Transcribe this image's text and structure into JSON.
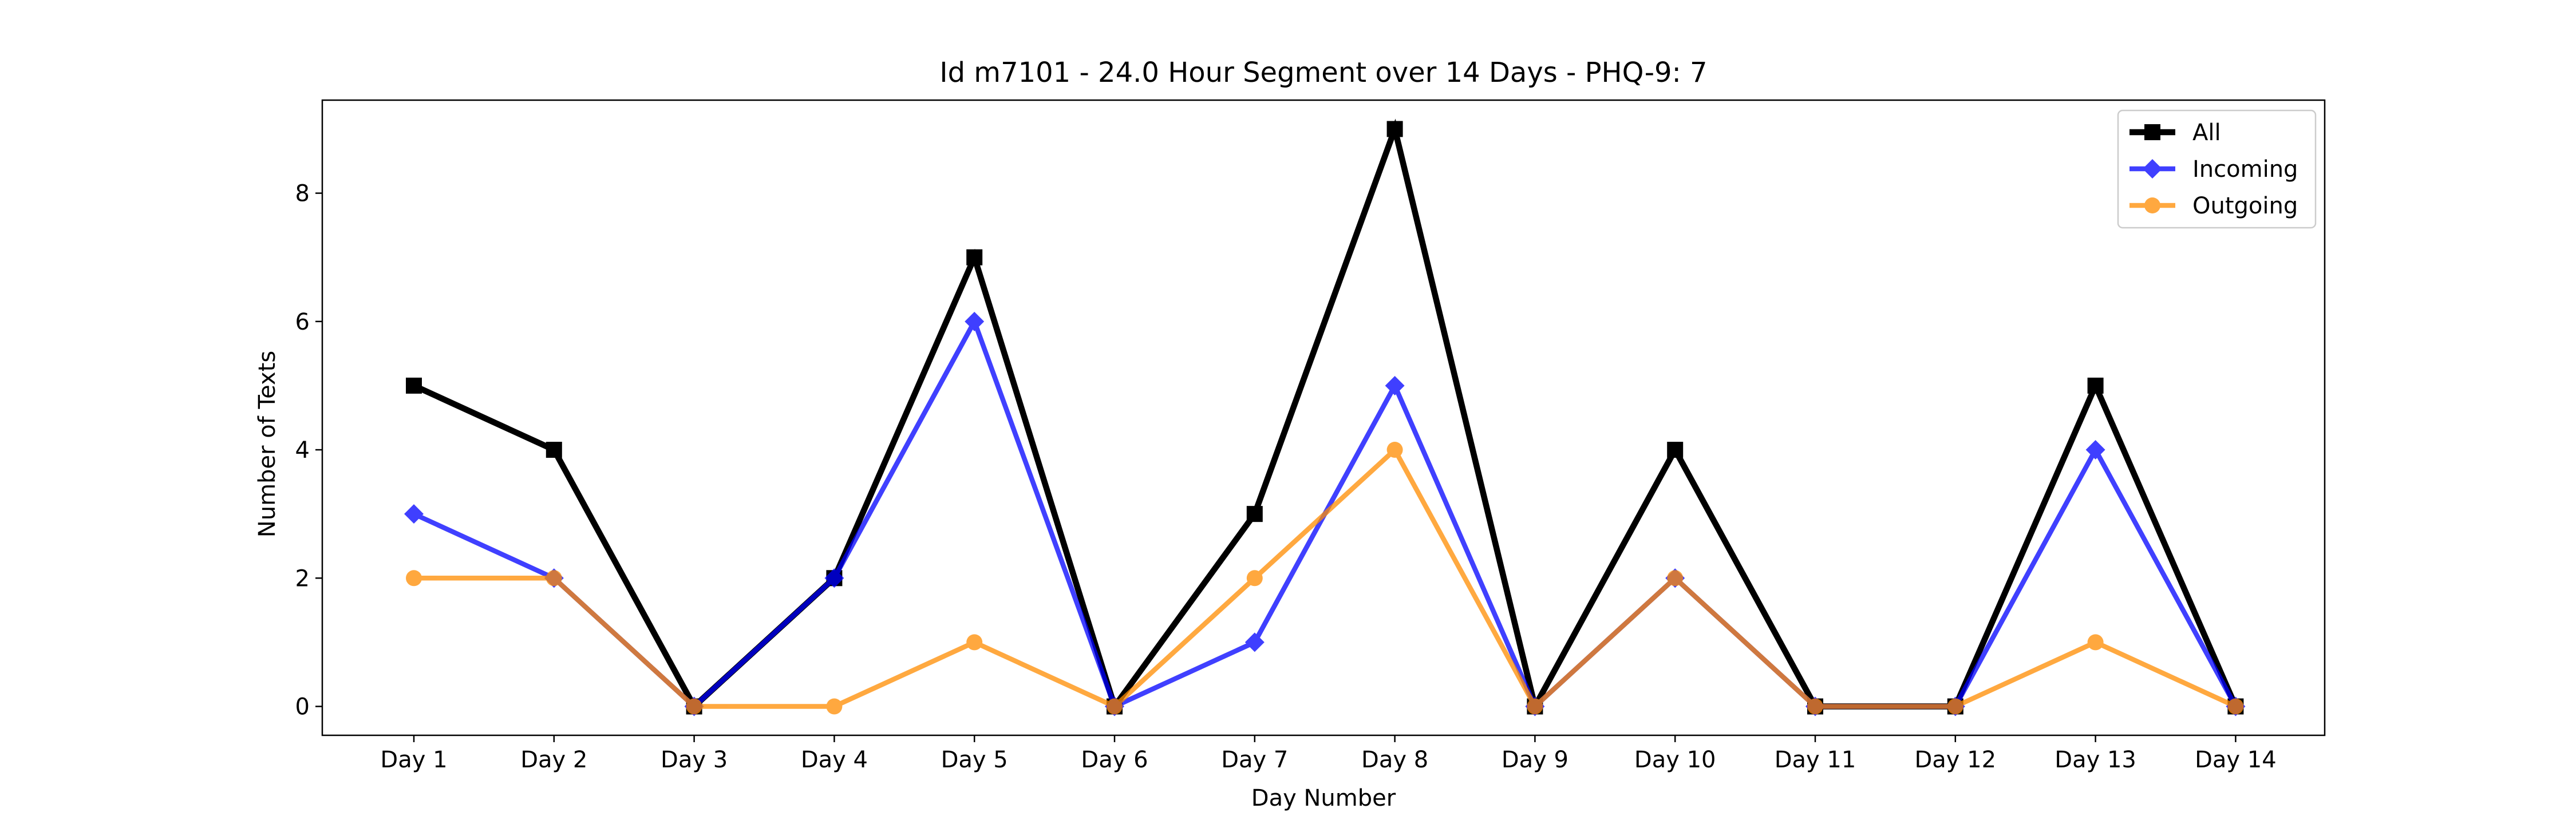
{
  "chart_data": {
    "type": "line",
    "title": "Id m7101 - 24.0 Hour Segment over 14 Days - PHQ-9: 7",
    "xlabel": "Day Number",
    "ylabel": "Number of Texts",
    "categories": [
      "Day 1",
      "Day 2",
      "Day 3",
      "Day 4",
      "Day 5",
      "Day 6",
      "Day 7",
      "Day 8",
      "Day 9",
      "Day 10",
      "Day 11",
      "Day 12",
      "Day 13",
      "Day 14"
    ],
    "ylim": [
      -0.45,
      9.45
    ],
    "yticks": [
      0,
      2,
      4,
      6,
      8
    ],
    "grid": false,
    "legend_position": "top-right",
    "series": [
      {
        "name": "All",
        "values": [
          5,
          4,
          0,
          2,
          7,
          0,
          3,
          9,
          0,
          4,
          0,
          0,
          5,
          0
        ],
        "color": "#000000",
        "marker": "square"
      },
      {
        "name": "Incoming",
        "values": [
          3,
          2,
          0,
          2,
          6,
          0,
          1,
          5,
          0,
          2,
          0,
          0,
          4,
          0
        ],
        "color": "#0000ff",
        "marker": "diamond"
      },
      {
        "name": "Outgoing",
        "values": [
          2,
          2,
          0,
          0,
          1,
          0,
          2,
          4,
          0,
          2,
          0,
          0,
          1,
          0
        ],
        "color": "#ff8c00",
        "marker": "circle"
      }
    ]
  }
}
